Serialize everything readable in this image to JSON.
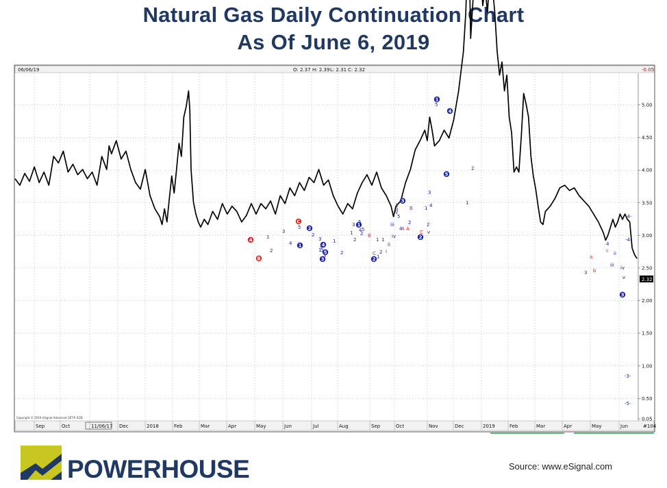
{
  "title_line1": "Natural Gas Daily Continuation Chart",
  "title_line2": "As Of June 6, 2019",
  "brand": "POWERHOUSE",
  "source": "Source: www.eSignal.com",
  "top_bar": {
    "date": "06/06/19",
    "open": "O: 2.37",
    "high": "H: 2.39",
    "low": "L: 2.31",
    "close": "C: 2.32",
    "change": "-0.05"
  },
  "copyright": "Copyright © 2019 eSignal Advanced GET® EOD",
  "colors": {
    "title": "#1f3864",
    "logo_yellow": "#c8c620",
    "logo_navy": "#1f3864",
    "wave_blue": "#1a23a8",
    "wave_red": "#e0201b",
    "projection_green": "#27a84a",
    "price_line": "#000000"
  },
  "chart_data": {
    "type": "line",
    "title": "Natural Gas Daily Continuation Chart",
    "xlabel": "",
    "ylabel": "",
    "ylim": [
      0.35,
      5.35
    ],
    "grid": true,
    "last_price_label": "2.32",
    "y_ticks": [
      "5.00",
      "4.50",
      "4.00",
      "3.50",
      "3.00",
      "2.50",
      "2.00",
      "1.50",
      "1.00",
      "0.50",
      "0.05"
    ],
    "x_axis_labels": [
      "Sep",
      "Oct",
      "11/06/17",
      "Dec",
      "2018",
      "Feb",
      "Mar",
      "Apr",
      "May",
      "Jun",
      "Jul",
      "Aug",
      "Sep",
      "Oct",
      "Nov",
      "Dec",
      "2019",
      "Feb",
      "Mar",
      "Apr",
      "May",
      "Jun",
      "#104"
    ],
    "series": [
      {
        "values": [
          [
            0,
            2.93
          ],
          [
            4,
            2.88
          ],
          [
            8,
            2.97
          ],
          [
            12,
            2.91
          ],
          [
            16,
            3.02
          ],
          [
            20,
            2.9
          ],
          [
            24,
            2.98
          ],
          [
            28,
            2.88
          ],
          [
            32,
            3.1
          ],
          [
            36,
            3.05
          ],
          [
            40,
            3.14
          ],
          [
            44,
            2.98
          ],
          [
            48,
            3.04
          ],
          [
            52,
            2.96
          ],
          [
            56,
            3.0
          ],
          [
            60,
            2.93
          ],
          [
            64,
            2.98
          ],
          [
            68,
            2.88
          ],
          [
            72,
            3.1
          ],
          [
            76,
            3.0
          ],
          [
            78,
            3.18
          ],
          [
            80,
            3.12
          ],
          [
            84,
            3.22
          ],
          [
            88,
            3.08
          ],
          [
            92,
            3.14
          ],
          [
            96,
            3.0
          ],
          [
            100,
            2.9
          ],
          [
            104,
            2.85
          ],
          [
            108,
            3.0
          ],
          [
            112,
            2.8
          ],
          [
            116,
            2.7
          ],
          [
            120,
            2.64
          ],
          [
            122,
            2.58
          ],
          [
            124,
            2.7
          ],
          [
            126,
            2.6
          ],
          [
            128,
            2.78
          ],
          [
            130,
            2.95
          ],
          [
            132,
            2.82
          ],
          [
            134,
            3.0
          ],
          [
            136,
            3.2
          ],
          [
            138,
            3.1
          ],
          [
            140,
            3.4
          ],
          [
            142,
            3.48
          ],
          [
            144,
            3.6
          ],
          [
            145,
            3.45
          ],
          [
            146,
            3.0
          ],
          [
            148,
            2.75
          ],
          [
            150,
            2.66
          ],
          [
            152,
            2.6
          ],
          [
            154,
            2.56
          ],
          [
            157,
            2.62
          ],
          [
            160,
            2.58
          ],
          [
            164,
            2.68
          ],
          [
            168,
            2.62
          ],
          [
            172,
            2.74
          ],
          [
            176,
            2.66
          ],
          [
            180,
            2.72
          ],
          [
            184,
            2.68
          ],
          [
            188,
            2.6
          ],
          [
            192,
            2.65
          ],
          [
            196,
            2.74
          ],
          [
            200,
            2.66
          ],
          [
            204,
            2.74
          ],
          [
            208,
            2.7
          ],
          [
            212,
            2.76
          ],
          [
            216,
            2.66
          ],
          [
            220,
            2.8
          ],
          [
            224,
            2.74
          ],
          [
            228,
            2.86
          ],
          [
            232,
            2.8
          ],
          [
            236,
            2.9
          ],
          [
            240,
            2.84
          ],
          [
            244,
            2.94
          ],
          [
            248,
            2.9
          ],
          [
            252,
            3.0
          ],
          [
            256,
            2.88
          ],
          [
            260,
            2.92
          ],
          [
            264,
            2.8
          ],
          [
            268,
            2.72
          ],
          [
            272,
            2.66
          ],
          [
            276,
            2.74
          ],
          [
            280,
            2.7
          ],
          [
            284,
            2.82
          ],
          [
            288,
            2.9
          ],
          [
            292,
            2.96
          ],
          [
            296,
            2.88
          ],
          [
            300,
            2.98
          ],
          [
            304,
            2.86
          ],
          [
            308,
            2.8
          ],
          [
            312,
            2.72
          ],
          [
            314,
            2.64
          ],
          [
            316,
            2.72
          ],
          [
            320,
            2.76
          ],
          [
            324,
            2.9
          ],
          [
            328,
            3.0
          ],
          [
            332,
            3.15
          ],
          [
            336,
            3.22
          ],
          [
            340,
            3.3
          ],
          [
            342,
            3.22
          ],
          [
            344,
            3.4
          ],
          [
            346,
            3.3
          ],
          [
            348,
            3.18
          ],
          [
            352,
            3.22
          ],
          [
            356,
            3.3
          ],
          [
            360,
            3.24
          ],
          [
            364,
            3.38
          ],
          [
            368,
            3.6
          ],
          [
            372,
            3.9
          ],
          [
            374,
            4.2
          ],
          [
            376,
            4.8
          ],
          [
            377,
            4.5
          ],
          [
            378,
            4.0
          ],
          [
            380,
            4.3
          ],
          [
            382,
            4.7
          ],
          [
            384,
            4.55
          ],
          [
            386,
            4.6
          ],
          [
            388,
            4.25
          ],
          [
            390,
            4.38
          ],
          [
            392,
            4.2
          ],
          [
            394,
            4.52
          ],
          [
            396,
            4.4
          ],
          [
            398,
            4.2
          ],
          [
            400,
            3.9
          ],
          [
            402,
            3.72
          ],
          [
            404,
            3.82
          ],
          [
            406,
            3.6
          ],
          [
            408,
            3.72
          ],
          [
            410,
            3.4
          ],
          [
            412,
            3.28
          ],
          [
            414,
            2.98
          ],
          [
            416,
            3.02
          ],
          [
            418,
            2.98
          ],
          [
            420,
            3.25
          ],
          [
            422,
            3.58
          ],
          [
            424,
            3.5
          ],
          [
            426,
            3.4
          ],
          [
            428,
            3.1
          ],
          [
            430,
            2.95
          ],
          [
            432,
            2.85
          ],
          [
            434,
            2.72
          ],
          [
            436,
            2.6
          ],
          [
            438,
            2.58
          ],
          [
            440,
            2.68
          ],
          [
            444,
            2.72
          ],
          [
            448,
            2.78
          ],
          [
            452,
            2.86
          ],
          [
            456,
            2.88
          ],
          [
            460,
            2.84
          ],
          [
            464,
            2.86
          ],
          [
            468,
            2.8
          ],
          [
            472,
            2.76
          ],
          [
            476,
            2.72
          ],
          [
            480,
            2.66
          ],
          [
            484,
            2.6
          ],
          [
            488,
            2.52
          ],
          [
            490,
            2.46
          ],
          [
            492,
            2.5
          ],
          [
            494,
            2.56
          ],
          [
            496,
            2.62
          ],
          [
            498,
            2.56
          ],
          [
            500,
            2.6
          ],
          [
            502,
            2.66
          ],
          [
            504,
            2.62
          ],
          [
            506,
            2.66
          ],
          [
            508,
            2.62
          ],
          [
            510,
            2.6
          ],
          [
            512,
            2.4
          ],
          [
            514,
            2.35
          ],
          [
            516,
            2.32
          ]
        ]
      }
    ],
    "annotations_blue": [
      "5",
      "4",
      "3",
      "2",
      "1",
      "2",
      "1",
      "3",
      "4",
      "5",
      "1",
      "2",
      "1",
      "2",
      "3",
      "4",
      "5",
      "3",
      "v",
      "2",
      "1",
      "iii",
      "iv",
      "ii",
      "i",
      "1",
      "2",
      "3",
      "4",
      "5",
      "v",
      "3",
      "1",
      "2",
      "3",
      "4",
      "5",
      "5",
      "2",
      "1",
      "2",
      "1",
      "-4-",
      "-4-",
      "4",
      "3",
      "ii",
      "iii",
      "iv",
      "v",
      "-3-",
      "-5-"
    ],
    "annotations_red": [
      "4",
      "B",
      "C",
      "A",
      "C",
      "B",
      "a",
      "b",
      "c"
    ],
    "annotations_circled": [
      {
        "label": "4",
        "color": "red"
      },
      {
        "label": "B",
        "color": "red"
      },
      {
        "label": "C",
        "color": "red"
      },
      {
        "label": "2",
        "color": "blue"
      },
      {
        "label": "1",
        "color": "blue"
      },
      {
        "label": "3",
        "color": "blue"
      },
      {
        "label": "4",
        "color": "blue"
      },
      {
        "label": "5",
        "color": "blue"
      },
      {
        "label": "1",
        "color": "blue"
      },
      {
        "label": "2",
        "color": "blue"
      },
      {
        "label": "3",
        "color": "blue"
      },
      {
        "label": "4",
        "color": "blue"
      },
      {
        "label": "5",
        "color": "blue"
      },
      {
        "label": "2",
        "color": "blue"
      },
      {
        "label": "1",
        "color": "blue"
      },
      {
        "label": "3",
        "color": "blue"
      }
    ]
  }
}
